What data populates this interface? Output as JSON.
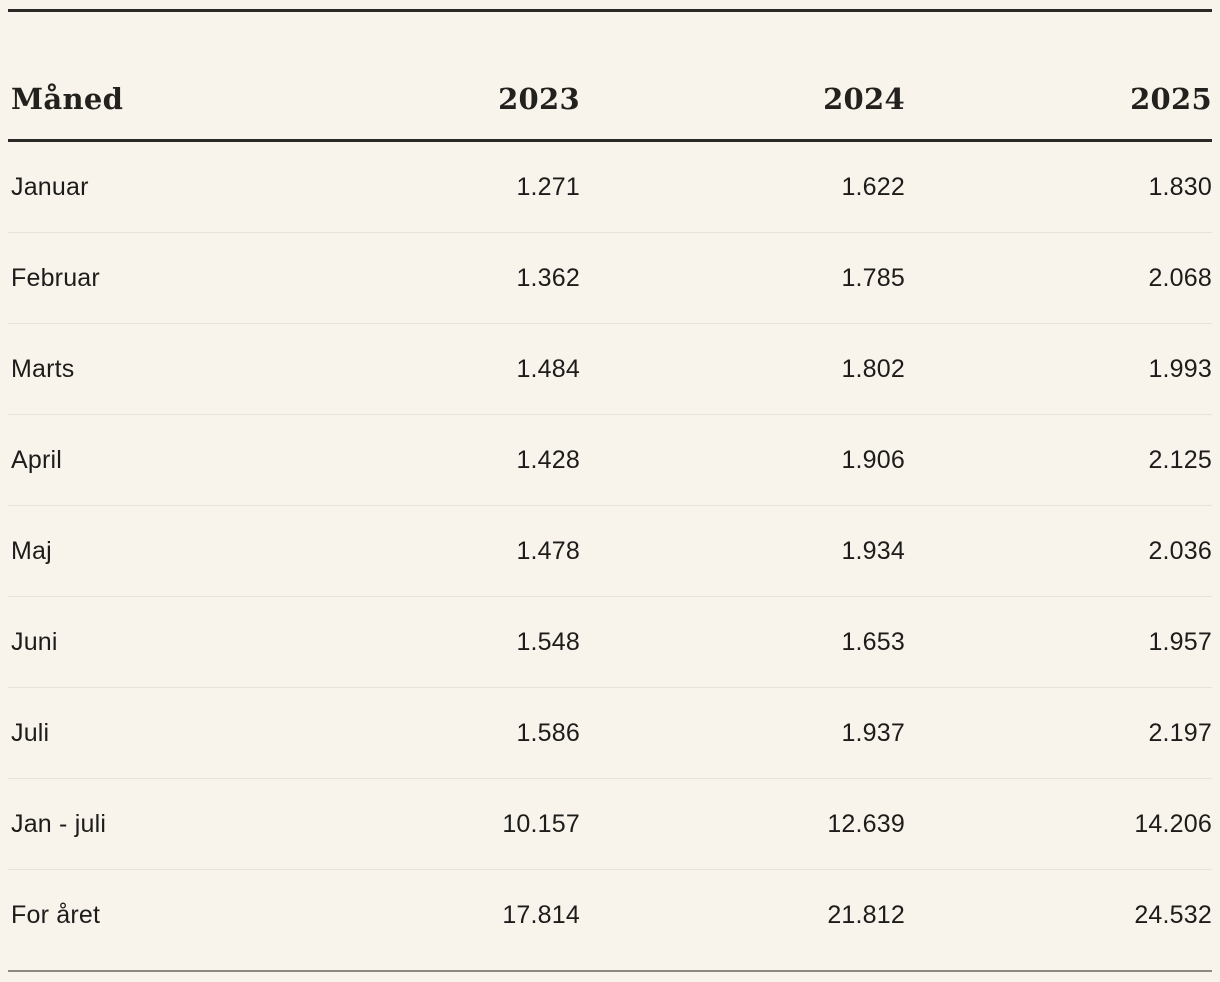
{
  "colors": {
    "background": "#f8f4ec",
    "text": "#1d1c1a",
    "rule_dark": "#2b2925",
    "rule_light": "#e9e3d7",
    "rule_bottom": "#8c8982"
  },
  "table": {
    "header": [
      "Måned",
      "2023",
      "2024",
      "2025"
    ],
    "rows": [
      {
        "label": "Januar",
        "values": [
          "1.271",
          "1.622",
          "1.830"
        ]
      },
      {
        "label": "Februar",
        "values": [
          "1.362",
          "1.785",
          "2.068"
        ]
      },
      {
        "label": "Marts",
        "values": [
          "1.484",
          "1.802",
          "1.993"
        ]
      },
      {
        "label": "April",
        "values": [
          "1.428",
          "1.906",
          "2.125"
        ]
      },
      {
        "label": "Maj",
        "values": [
          "1.478",
          "1.934",
          "2.036"
        ]
      },
      {
        "label": "Juni",
        "values": [
          "1.548",
          "1.653",
          "1.957"
        ]
      },
      {
        "label": "Juli",
        "values": [
          "1.586",
          "1.937",
          "2.197"
        ]
      },
      {
        "label": "Jan - juli",
        "values": [
          "10.157",
          "12.639",
          "14.206"
        ]
      },
      {
        "label": "For året",
        "values": [
          "17.814",
          "21.812",
          "24.532"
        ]
      }
    ]
  },
  "chart_data": {
    "type": "table",
    "columns": [
      "Måned",
      "2023",
      "2024",
      "2025"
    ],
    "rows": [
      [
        "Januar",
        1271,
        1622,
        1830
      ],
      [
        "Februar",
        1362,
        1785,
        2068
      ],
      [
        "Marts",
        1484,
        1802,
        1993
      ],
      [
        "April",
        1428,
        1906,
        2125
      ],
      [
        "Maj",
        1478,
        1934,
        2036
      ],
      [
        "Juni",
        1548,
        1653,
        1957
      ],
      [
        "Juli",
        1586,
        1937,
        2197
      ],
      [
        "Jan - juli",
        10157,
        12639,
        14206
      ],
      [
        "For året",
        17814,
        21812,
        24532
      ]
    ],
    "number_format": "thousands separated by '.' (Danish)",
    "layout": "first column left-aligned month labels; year columns right-aligned"
  }
}
